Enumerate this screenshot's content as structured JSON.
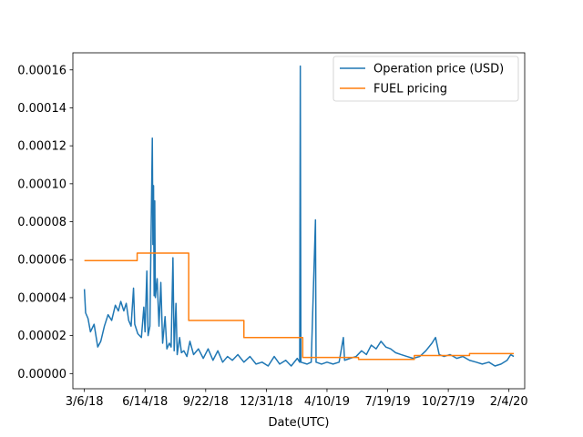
{
  "chart_data": {
    "type": "line",
    "xlabel": "Date(UTC)",
    "ylabel": "",
    "x_ticks": [
      {
        "label": "3/6/18",
        "date": "2018-03-06"
      },
      {
        "label": "6/14/18",
        "date": "2018-06-14"
      },
      {
        "label": "9/22/18",
        "date": "2018-09-22"
      },
      {
        "label": "12/31/18",
        "date": "2018-12-31"
      },
      {
        "label": "4/10/19",
        "date": "2019-04-10"
      },
      {
        "label": "7/19/19",
        "date": "2019-07-19"
      },
      {
        "label": "10/27/19",
        "date": "2019-10-27"
      },
      {
        "label": "2/4/20",
        "date": "2020-02-04"
      }
    ],
    "xlim": [
      "2018-02-15",
      "2020-03-01"
    ],
    "ylim": [
      -8e-06,
      0.000169
    ],
    "y_ticks": [
      0,
      2e-05,
      4e-05,
      6e-05,
      8e-05,
      0.0001,
      0.00012,
      0.00014,
      0.00016
    ],
    "y_tick_labels": [
      "0.00000",
      "0.00002",
      "0.00004",
      "0.00006",
      "0.00008",
      "0.00010",
      "0.00012",
      "0.00014",
      "0.00016"
    ],
    "grid": false,
    "legend_position": "top-right",
    "series": [
      {
        "name": "Operation price (USD)",
        "color": "#1f77b4",
        "points": [
          [
            "2018-03-06",
            4.45e-05
          ],
          [
            "2018-03-08",
            3.2e-05
          ],
          [
            "2018-03-12",
            2.9e-05
          ],
          [
            "2018-03-16",
            2.2e-05
          ],
          [
            "2018-03-22",
            2.6e-05
          ],
          [
            "2018-03-28",
            1.4e-05
          ],
          [
            "2018-04-02",
            1.7e-05
          ],
          [
            "2018-04-08",
            2.5e-05
          ],
          [
            "2018-04-14",
            3.1e-05
          ],
          [
            "2018-04-20",
            2.8e-05
          ],
          [
            "2018-04-26",
            3.6e-05
          ],
          [
            "2018-05-01",
            3.3e-05
          ],
          [
            "2018-05-05",
            3.8e-05
          ],
          [
            "2018-05-10",
            3.3e-05
          ],
          [
            "2018-05-14",
            3.7e-05
          ],
          [
            "2018-05-18",
            2.8e-05
          ],
          [
            "2018-05-22",
            2.5e-05
          ],
          [
            "2018-05-26",
            4.5e-05
          ],
          [
            "2018-05-28",
            2.6e-05
          ],
          [
            "2018-06-02",
            2.1e-05
          ],
          [
            "2018-06-08",
            1.9e-05
          ],
          [
            "2018-06-12",
            3.5e-05
          ],
          [
            "2018-06-14",
            2.2e-05
          ],
          [
            "2018-06-17",
            5.4e-05
          ],
          [
            "2018-06-19",
            2e-05
          ],
          [
            "2018-06-22",
            2.5e-05
          ],
          [
            "2018-06-26",
            0.000124
          ],
          [
            "2018-06-27",
            6.8e-05
          ],
          [
            "2018-06-28",
            9.9e-05
          ],
          [
            "2018-06-29",
            4.1e-05
          ],
          [
            "2018-06-30",
            9.1e-05
          ],
          [
            "2018-07-01",
            4e-05
          ],
          [
            "2018-07-04",
            5e-05
          ],
          [
            "2018-07-07",
            2.5e-05
          ],
          [
            "2018-07-10",
            4.8e-05
          ],
          [
            "2018-07-13",
            1.6e-05
          ],
          [
            "2018-07-17",
            3e-05
          ],
          [
            "2018-07-20",
            1.3e-05
          ],
          [
            "2018-07-24",
            1.6e-05
          ],
          [
            "2018-07-27",
            1.4e-05
          ],
          [
            "2018-07-30",
            6.1e-05
          ],
          [
            "2018-08-01",
            1.2e-05
          ],
          [
            "2018-08-04",
            3.7e-05
          ],
          [
            "2018-08-06",
            1e-05
          ],
          [
            "2018-08-10",
            1.9e-05
          ],
          [
            "2018-08-13",
            1.1e-05
          ],
          [
            "2018-08-17",
            1.2e-05
          ],
          [
            "2018-08-22",
            9e-06
          ],
          [
            "2018-08-27",
            1.7e-05
          ],
          [
            "2018-09-02",
            1e-05
          ],
          [
            "2018-09-10",
            1.3e-05
          ],
          [
            "2018-09-18",
            8e-06
          ],
          [
            "2018-09-26",
            1.3e-05
          ],
          [
            "2018-10-04",
            7e-06
          ],
          [
            "2018-10-12",
            1.2e-05
          ],
          [
            "2018-10-20",
            6e-06
          ],
          [
            "2018-10-28",
            9e-06
          ],
          [
            "2018-11-05",
            7e-06
          ],
          [
            "2018-11-14",
            1e-05
          ],
          [
            "2018-11-24",
            6e-06
          ],
          [
            "2018-12-04",
            9e-06
          ],
          [
            "2018-12-14",
            5e-06
          ],
          [
            "2018-12-24",
            6e-06
          ],
          [
            "2019-01-03",
            4e-06
          ],
          [
            "2019-01-13",
            9e-06
          ],
          [
            "2019-01-22",
            5e-06
          ],
          [
            "2019-02-01",
            7e-06
          ],
          [
            "2019-02-10",
            4e-06
          ],
          [
            "2019-02-20",
            8e-06
          ],
          [
            "2019-02-24",
            6e-06
          ],
          [
            "2019-02-25",
            0.000162
          ],
          [
            "2019-02-26",
            6e-06
          ],
          [
            "2019-03-08",
            5e-06
          ],
          [
            "2019-03-15",
            6e-06
          ],
          [
            "2019-03-22",
            8.1e-05
          ],
          [
            "2019-03-23",
            6e-06
          ],
          [
            "2019-04-01",
            5e-06
          ],
          [
            "2019-04-10",
            6e-06
          ],
          [
            "2019-04-20",
            5e-06
          ],
          [
            "2019-04-30",
            6e-06
          ],
          [
            "2019-05-07",
            1.9e-05
          ],
          [
            "2019-05-09",
            7e-06
          ],
          [
            "2019-05-18",
            8e-06
          ],
          [
            "2019-05-28",
            9e-06
          ],
          [
            "2019-06-06",
            1.2e-05
          ],
          [
            "2019-06-14",
            1e-05
          ],
          [
            "2019-06-22",
            1.5e-05
          ],
          [
            "2019-06-30",
            1.3e-05
          ],
          [
            "2019-07-08",
            1.7e-05
          ],
          [
            "2019-07-16",
            1.4e-05
          ],
          [
            "2019-07-24",
            1.3e-05
          ],
          [
            "2019-08-01",
            1.1e-05
          ],
          [
            "2019-08-10",
            1e-05
          ],
          [
            "2019-08-20",
            9e-06
          ],
          [
            "2019-08-30",
            8e-06
          ],
          [
            "2019-09-10",
            9e-06
          ],
          [
            "2019-09-20",
            1.2e-05
          ],
          [
            "2019-09-30",
            1.6e-05
          ],
          [
            "2019-10-06",
            1.9e-05
          ],
          [
            "2019-10-12",
            1e-05
          ],
          [
            "2019-10-20",
            9e-06
          ],
          [
            "2019-10-30",
            1e-05
          ],
          [
            "2019-11-10",
            8e-06
          ],
          [
            "2019-11-20",
            9e-06
          ],
          [
            "2019-12-01",
            7e-06
          ],
          [
            "2019-12-12",
            6e-06
          ],
          [
            "2019-12-22",
            5e-06
          ],
          [
            "2020-01-02",
            6e-06
          ],
          [
            "2020-01-12",
            4e-06
          ],
          [
            "2020-01-22",
            5e-06
          ],
          [
            "2020-02-01",
            7e-06
          ],
          [
            "2020-02-07",
            1e-05
          ],
          [
            "2020-02-12",
            9e-06
          ]
        ]
      },
      {
        "name": "FUEL pricing",
        "color": "#ff7f0e",
        "points": [
          [
            "2018-03-06",
            5.95e-05
          ],
          [
            "2018-06-01",
            5.95e-05
          ],
          [
            "2018-06-01",
            6.35e-05
          ],
          [
            "2018-08-25",
            6.35e-05
          ],
          [
            "2018-08-25",
            2.8e-05
          ],
          [
            "2018-11-24",
            2.8e-05
          ],
          [
            "2018-11-24",
            1.9e-05
          ],
          [
            "2019-03-01",
            1.9e-05
          ],
          [
            "2019-03-01",
            8.5e-06
          ],
          [
            "2019-06-01",
            8.5e-06
          ],
          [
            "2019-06-01",
            7.5e-06
          ],
          [
            "2019-09-01",
            7.5e-06
          ],
          [
            "2019-09-01",
            9.5e-06
          ],
          [
            "2019-12-01",
            9.5e-06
          ],
          [
            "2019-12-01",
            1.05e-05
          ],
          [
            "2020-02-12",
            1.05e-05
          ]
        ]
      }
    ]
  }
}
